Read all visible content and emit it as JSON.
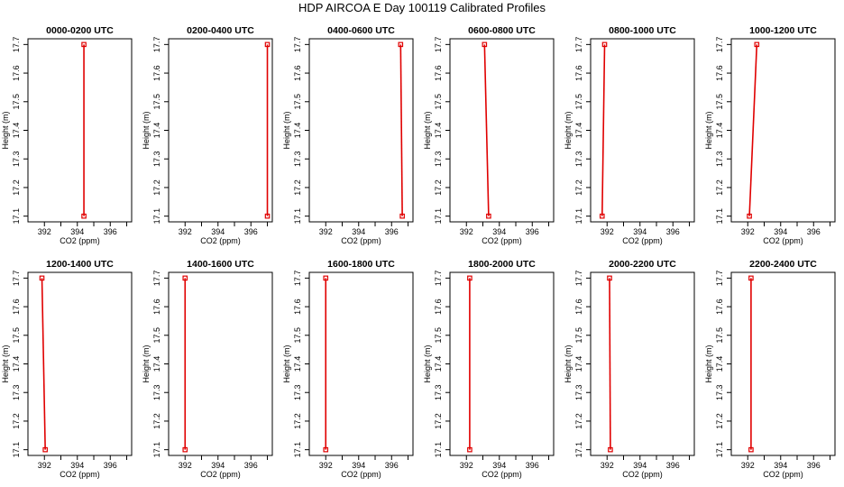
{
  "title": "HDP AIRCOA E  Day 100119  Calibrated Profiles",
  "colors": {
    "series": "#e00000",
    "axis": "#000000"
  },
  "chart_data": [
    {
      "type": "line",
      "title": "0000-0200 UTC",
      "xlabel": "CO2 (ppm)",
      "ylabel": "Height (m)",
      "xlim": [
        391,
        397.3
      ],
      "ylim": [
        17.08,
        17.72
      ],
      "x_ticks": [
        "392",
        "394",
        "396"
      ],
      "y_ticks": [
        "17.1",
        "17.2",
        "17.3",
        "17.4",
        "17.5",
        "17.6",
        "17.7"
      ],
      "series": [
        {
          "x": [
            394.4,
            394.4
          ],
          "y": [
            17.1,
            17.7
          ]
        }
      ]
    },
    {
      "type": "line",
      "title": "0200-0400 UTC",
      "xlabel": "CO2 (ppm)",
      "ylabel": "Height (m)",
      "xlim": [
        391,
        397.3
      ],
      "ylim": [
        17.08,
        17.72
      ],
      "x_ticks": [
        "392",
        "394",
        "396"
      ],
      "y_ticks": [
        "17.1",
        "17.2",
        "17.3",
        "17.4",
        "17.5",
        "17.6",
        "17.7"
      ],
      "series": [
        {
          "x": [
            397.0,
            397.0
          ],
          "y": [
            17.1,
            17.7
          ]
        }
      ]
    },
    {
      "type": "line",
      "title": "0400-0600 UTC",
      "xlabel": "CO2 (ppm)",
      "ylabel": "Height (m)",
      "xlim": [
        391,
        397.3
      ],
      "ylim": [
        17.08,
        17.72
      ],
      "x_ticks": [
        "392",
        "394",
        "396"
      ],
      "y_ticks": [
        "17.1",
        "17.2",
        "17.3",
        "17.4",
        "17.5",
        "17.6",
        "17.7"
      ],
      "series": [
        {
          "x": [
            396.65,
            396.55
          ],
          "y": [
            17.1,
            17.7
          ]
        }
      ]
    },
    {
      "type": "line",
      "title": "0600-0800 UTC",
      "xlabel": "CO2 (ppm)",
      "ylabel": "Height (m)",
      "xlim": [
        391,
        397.3
      ],
      "ylim": [
        17.08,
        17.72
      ],
      "x_ticks": [
        "392",
        "394",
        "396"
      ],
      "y_ticks": [
        "17.1",
        "17.2",
        "17.3",
        "17.4",
        "17.5",
        "17.6",
        "17.7"
      ],
      "series": [
        {
          "x": [
            393.35,
            393.1
          ],
          "y": [
            17.1,
            17.7
          ]
        }
      ]
    },
    {
      "type": "line",
      "title": "0800-1000 UTC",
      "xlabel": "CO2 (ppm)",
      "ylabel": "Height (m)",
      "xlim": [
        391,
        397.3
      ],
      "ylim": [
        17.08,
        17.72
      ],
      "x_ticks": [
        "392",
        "394",
        "396"
      ],
      "y_ticks": [
        "17.1",
        "17.2",
        "17.3",
        "17.4",
        "17.5",
        "17.6",
        "17.7"
      ],
      "series": [
        {
          "x": [
            391.7,
            391.85
          ],
          "y": [
            17.1,
            17.7
          ]
        }
      ]
    },
    {
      "type": "line",
      "title": "1000-1200 UTC",
      "xlabel": "CO2 (ppm)",
      "ylabel": "Height (m)",
      "xlim": [
        391,
        397.3
      ],
      "ylim": [
        17.08,
        17.72
      ],
      "x_ticks": [
        "392",
        "394",
        "396"
      ],
      "y_ticks": [
        "17.1",
        "17.2",
        "17.3",
        "17.4",
        "17.5",
        "17.6",
        "17.7"
      ],
      "series": [
        {
          "x": [
            392.1,
            392.55
          ],
          "y": [
            17.1,
            17.7
          ]
        }
      ]
    },
    {
      "type": "line",
      "title": "1200-1400 UTC",
      "xlabel": "CO2 (ppm)",
      "ylabel": "Height (m)",
      "xlim": [
        391,
        397.3
      ],
      "ylim": [
        17.08,
        17.72
      ],
      "x_ticks": [
        "392",
        "394",
        "396"
      ],
      "y_ticks": [
        "17.1",
        "17.2",
        "17.3",
        "17.4",
        "17.5",
        "17.6",
        "17.7"
      ],
      "series": [
        {
          "x": [
            392.05,
            391.85
          ],
          "y": [
            17.1,
            17.7
          ]
        }
      ]
    },
    {
      "type": "line",
      "title": "1400-1600 UTC",
      "xlabel": "CO2 (ppm)",
      "ylabel": "Height (m)",
      "xlim": [
        391,
        397.3
      ],
      "ylim": [
        17.08,
        17.72
      ],
      "x_ticks": [
        "392",
        "394",
        "396"
      ],
      "y_ticks": [
        "17.1",
        "17.2",
        "17.3",
        "17.4",
        "17.5",
        "17.6",
        "17.7"
      ],
      "series": [
        {
          "x": [
            392.0,
            392.0
          ],
          "y": [
            17.1,
            17.7
          ]
        }
      ]
    },
    {
      "type": "line",
      "title": "1600-1800 UTC",
      "xlabel": "CO2 (ppm)",
      "ylabel": "Height (m)",
      "xlim": [
        391,
        397.3
      ],
      "ylim": [
        17.08,
        17.72
      ],
      "x_ticks": [
        "392",
        "394",
        "396"
      ],
      "y_ticks": [
        "17.1",
        "17.2",
        "17.3",
        "17.4",
        "17.5",
        "17.6",
        "17.7"
      ],
      "series": [
        {
          "x": [
            392.0,
            392.0
          ],
          "y": [
            17.1,
            17.7
          ]
        }
      ]
    },
    {
      "type": "line",
      "title": "1800-2000 UTC",
      "xlabel": "CO2 (ppm)",
      "ylabel": "Height (m)",
      "xlim": [
        391,
        397.3
      ],
      "ylim": [
        17.08,
        17.72
      ],
      "x_ticks": [
        "392",
        "394",
        "396"
      ],
      "y_ticks": [
        "17.1",
        "17.2",
        "17.3",
        "17.4",
        "17.5",
        "17.6",
        "17.7"
      ],
      "series": [
        {
          "x": [
            392.2,
            392.2
          ],
          "y": [
            17.1,
            17.7
          ]
        }
      ]
    },
    {
      "type": "line",
      "title": "2000-2200 UTC",
      "xlabel": "CO2 (ppm)",
      "ylabel": "Height (m)",
      "xlim": [
        391,
        397.3
      ],
      "ylim": [
        17.08,
        17.72
      ],
      "x_ticks": [
        "392",
        "394",
        "396"
      ],
      "y_ticks": [
        "17.1",
        "17.2",
        "17.3",
        "17.4",
        "17.5",
        "17.6",
        "17.7"
      ],
      "series": [
        {
          "x": [
            392.2,
            392.15
          ],
          "y": [
            17.1,
            17.7
          ]
        }
      ]
    },
    {
      "type": "line",
      "title": "2200-2400 UTC",
      "xlabel": "CO2 (ppm)",
      "ylabel": "Height (m)",
      "xlim": [
        391,
        397.3
      ],
      "ylim": [
        17.08,
        17.72
      ],
      "x_ticks": [
        "392",
        "394",
        "396"
      ],
      "y_ticks": [
        "17.1",
        "17.2",
        "17.3",
        "17.4",
        "17.5",
        "17.6",
        "17.7"
      ],
      "series": [
        {
          "x": [
            392.2,
            392.2
          ],
          "y": [
            17.1,
            17.7
          ]
        }
      ]
    }
  ]
}
